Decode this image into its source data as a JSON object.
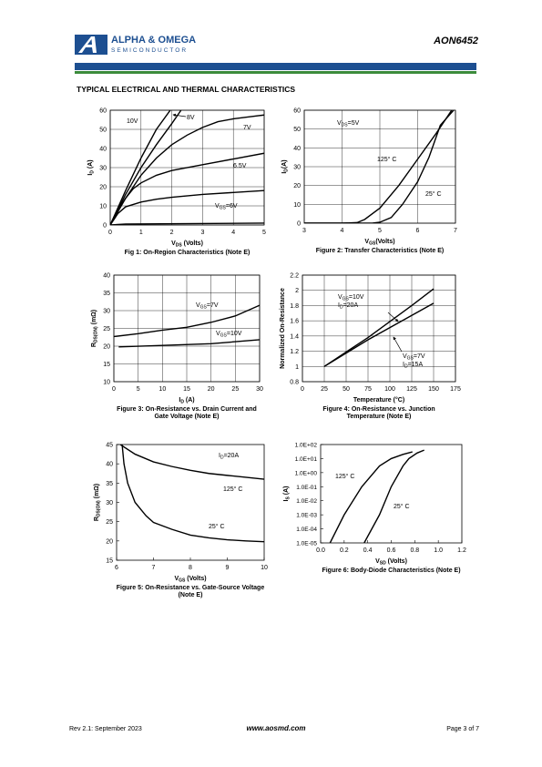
{
  "header": {
    "company": "ALPHA & OMEGA",
    "division": "SEMICONDUCTOR",
    "part": "AON6452"
  },
  "section_title": "TYPICAL ELECTRICAL AND THERMAL CHARACTERISTICS",
  "chart_data": [
    {
      "type": "line",
      "caption": [
        "Fig 1: On-Region Characteristics (Note E)"
      ],
      "xlabel": [
        [
          "V",
          "DS",
          " (Volts)"
        ]
      ],
      "ylabel": [
        [
          "I",
          "D",
          " (A)"
        ]
      ],
      "xlim": [
        0,
        5
      ],
      "xticks": [
        0,
        1,
        2,
        3,
        4,
        5
      ],
      "ylim": [
        0,
        60
      ],
      "yticks": [
        0,
        10,
        20,
        30,
        40,
        50,
        60
      ],
      "grid": true,
      "series": [
        {
          "name": [
            [
              "10V"
            ]
          ],
          "color": "#000",
          "x": [
            0,
            0.5,
            1,
            1.5,
            1.95
          ],
          "values": [
            0,
            18,
            35,
            50,
            60
          ]
        },
        {
          "name": [
            [
              "8V"
            ]
          ],
          "color": "#000",
          "x": [
            0,
            0.5,
            1,
            1.5,
            2,
            2.3
          ],
          "values": [
            0,
            16,
            30,
            42,
            53,
            60
          ]
        },
        {
          "name": [
            [
              "7V"
            ]
          ],
          "color": "#000",
          "x": [
            0,
            0.5,
            1,
            1.5,
            2,
            2.5,
            3,
            3.5,
            4,
            4.5,
            5
          ],
          "values": [
            0,
            14,
            26,
            35,
            42,
            47,
            51,
            54,
            55.5,
            56.5,
            57.5
          ]
        },
        {
          "name": [
            [
              "6.5V"
            ]
          ],
          "color": "#000",
          "x": [
            0,
            0.25,
            0.5,
            0.75,
            1,
            1.5,
            2,
            3,
            4,
            5
          ],
          "values": [
            0,
            8,
            14,
            19,
            22,
            26,
            28.5,
            31.5,
            34.5,
            37.5
          ]
        },
        {
          "name": [
            [
              "V",
              "GS",
              "=6V"
            ]
          ],
          "color": "#000",
          "x": [
            0,
            0.25,
            0.5,
            1,
            1.5,
            2,
            3,
            4,
            5
          ],
          "values": [
            0,
            6,
            9.5,
            12,
            13.5,
            14.5,
            16,
            17,
            18
          ]
        },
        {
          "color": "#000",
          "x": [
            0,
            0.5,
            5
          ],
          "values": [
            0,
            0.5,
            1
          ]
        }
      ]
    },
    {
      "type": "line",
      "caption": [
        "Figure 2: Transfer Characteristics (Note E)"
      ],
      "xlabel": [
        [
          "V",
          "GS",
          "(Volts)"
        ]
      ],
      "ylabel": [
        [
          "I",
          "D",
          "(A)"
        ]
      ],
      "xlim": [
        3,
        7
      ],
      "xticks": [
        3,
        4,
        5,
        6,
        7
      ],
      "ylim": [
        0,
        60
      ],
      "yticks": [
        0,
        10,
        20,
        30,
        40,
        50,
        60
      ],
      "grid": true,
      "annotations": [
        [
          [
            "V",
            "DS",
            "=5V"
          ]
        ]
      ],
      "series": [
        {
          "name": [
            [
              "125° C"
            ]
          ],
          "color": "#000",
          "x": [
            3,
            4,
            4.4,
            4.6,
            5,
            5.5,
            6,
            6.5,
            6.9
          ],
          "values": [
            0,
            0,
            0.3,
            2,
            8,
            20,
            34,
            48,
            60
          ]
        },
        {
          "name": [
            [
              "25° C"
            ]
          ],
          "color": "#000",
          "x": [
            3,
            4.8,
            5,
            5.3,
            5.6,
            6,
            6.3,
            6.6,
            6.95
          ],
          "values": [
            0,
            0,
            0.5,
            3,
            10,
            22,
            35,
            52,
            60
          ]
        }
      ]
    },
    {
      "type": "line",
      "caption": [
        "Figure 3: On-Resistance vs. Drain Current and",
        "Gate Voltage (Note E)"
      ],
      "xlabel": [
        [
          "I",
          "D",
          " (A)"
        ]
      ],
      "ylabel": [
        [
          "R",
          "DS(ON)",
          " (mΩ)"
        ]
      ],
      "xlim": [
        0,
        30
      ],
      "xticks": [
        0,
        5,
        10,
        15,
        20,
        25,
        30
      ],
      "ylim": [
        10,
        40
      ],
      "yticks": [
        10,
        15,
        20,
        25,
        30,
        35,
        40
      ],
      "grid": true,
      "series": [
        {
          "name": [
            [
              "V",
              "GS",
              "=7V"
            ]
          ],
          "color": "#000",
          "x": [
            0,
            5,
            10,
            15,
            20,
            25,
            30
          ],
          "values": [
            22.7,
            23.5,
            24.5,
            25.3,
            26.7,
            28.5,
            31.5
          ]
        },
        {
          "name": [
            [
              "V",
              "GS",
              "=10V"
            ]
          ],
          "color": "#000",
          "x": [
            1,
            10,
            20,
            30
          ],
          "values": [
            19.8,
            20.2,
            20.7,
            21.8
          ]
        }
      ]
    },
    {
      "type": "line",
      "caption": [
        "Figure 4: On-Resistance vs. Junction",
        "Temperature (Note E)"
      ],
      "xlabel": [
        [
          "Temperature (°C)"
        ]
      ],
      "ylabel": [
        [
          "Normalized On-Resistance"
        ]
      ],
      "xlim": [
        0,
        175
      ],
      "xticks": [
        0,
        25,
        50,
        75,
        100,
        125,
        150,
        175
      ],
      "ylim": [
        0.8,
        2.2
      ],
      "yticks": [
        0.8,
        1,
        1.2,
        1.4,
        1.6,
        1.8,
        2,
        2.2
      ],
      "grid": true,
      "series": [
        {
          "name": [
            [
              "V",
              "GS",
              "=10V"
            ],
            [
              "I",
              "D",
              "=20A"
            ]
          ],
          "color": "#000",
          "x": [
            25,
            75,
            125,
            150
          ],
          "values": [
            1,
            1.38,
            1.8,
            2.02
          ]
        },
        {
          "name": [
            [
              "V",
              "GS",
              "=7V"
            ],
            [
              "I",
              "D",
              "=15A"
            ]
          ],
          "color": "#000",
          "x": [
            25,
            75,
            125,
            150
          ],
          "values": [
            1,
            1.35,
            1.67,
            1.83
          ]
        }
      ]
    },
    {
      "type": "line",
      "caption": [
        "Figure 5: On-Resistance vs. Gate-Source Voltage",
        "(Note E)"
      ],
      "xlabel": [
        [
          "V",
          "GS",
          " (Volts)"
        ]
      ],
      "ylabel": [
        [
          "R",
          "DS(ON)",
          " (mΩ)"
        ]
      ],
      "xlim": [
        6,
        10
      ],
      "xticks": [
        6,
        7,
        8,
        9,
        10
      ],
      "ylim": [
        15,
        45
      ],
      "yticks": [
        15,
        20,
        25,
        30,
        35,
        40,
        45
      ],
      "grid": false,
      "annotations": [
        [
          [
            "I",
            "D",
            "=20A"
          ]
        ]
      ],
      "series": [
        {
          "name": [
            [
              "125° C"
            ]
          ],
          "color": "#000",
          "x": [
            6.1,
            6.5,
            7,
            7.5,
            8,
            8.5,
            9,
            9.5,
            10
          ],
          "values": [
            45,
            42.5,
            40.5,
            39.3,
            38.3,
            37.5,
            37,
            36.5,
            36
          ]
        },
        {
          "name": [
            [
              "25° C"
            ]
          ],
          "color": "#000",
          "x": [
            6.15,
            6.2,
            6.3,
            6.5,
            6.8,
            7,
            7.5,
            8,
            8.5,
            9,
            9.5,
            10
          ],
          "values": [
            45,
            40,
            35,
            30,
            26.5,
            24.8,
            23,
            21.5,
            20.8,
            20.3,
            20,
            19.8
          ]
        }
      ]
    },
    {
      "type": "line",
      "caption": [
        "Figure 6: Body-Diode Characteristics (Note E)"
      ],
      "xlabel": [
        [
          "V",
          "SD",
          " (Volts)"
        ]
      ],
      "ylabel": [
        [
          "I",
          "S",
          " (A)"
        ]
      ],
      "xlim": [
        0,
        1.2
      ],
      "xticks": [
        {
          "value": 0,
          "label": "0.0"
        },
        0.2,
        0.4,
        0.6,
        0.8,
        {
          "value": 1,
          "label": "1.0"
        },
        1.2
      ],
      "ylim": [
        1e-05,
        100
      ],
      "log_y": true,
      "yticks": [
        {
          "value": 1e-05,
          "label": "1.0E-05"
        },
        {
          "value": 0.0001,
          "label": "1.0E-04"
        },
        {
          "value": 0.001,
          "label": "1.0E-03"
        },
        {
          "value": 0.01,
          "label": "1.0E-02"
        },
        {
          "value": 0.1,
          "label": "1.0E-01"
        },
        {
          "value": 1,
          "label": "1.0E+00"
        },
        {
          "value": 10,
          "label": "1.0E+01"
        },
        {
          "value": 100,
          "label": "1.0E+02"
        }
      ],
      "grid": false,
      "series": [
        {
          "name": [
            [
              "125° C"
            ]
          ],
          "color": "#000",
          "x": [
            0.08,
            0.2,
            0.35,
            0.5,
            0.6,
            0.7,
            0.78
          ],
          "values": [
            1e-05,
            0.001,
            0.1,
            3,
            10,
            20,
            30
          ]
        },
        {
          "name": [
            [
              "25° C"
            ]
          ],
          "color": "#000",
          "x": [
            0.37,
            0.5,
            0.6,
            0.7,
            0.75,
            0.82,
            0.88
          ],
          "values": [
            1e-05,
            0.001,
            0.1,
            3,
            10,
            25,
            40
          ]
        }
      ]
    }
  ],
  "footer": {
    "revision": "Rev 2.1: September 2023",
    "website": "www.aosmd.com",
    "page": "Page 3 of 7"
  }
}
